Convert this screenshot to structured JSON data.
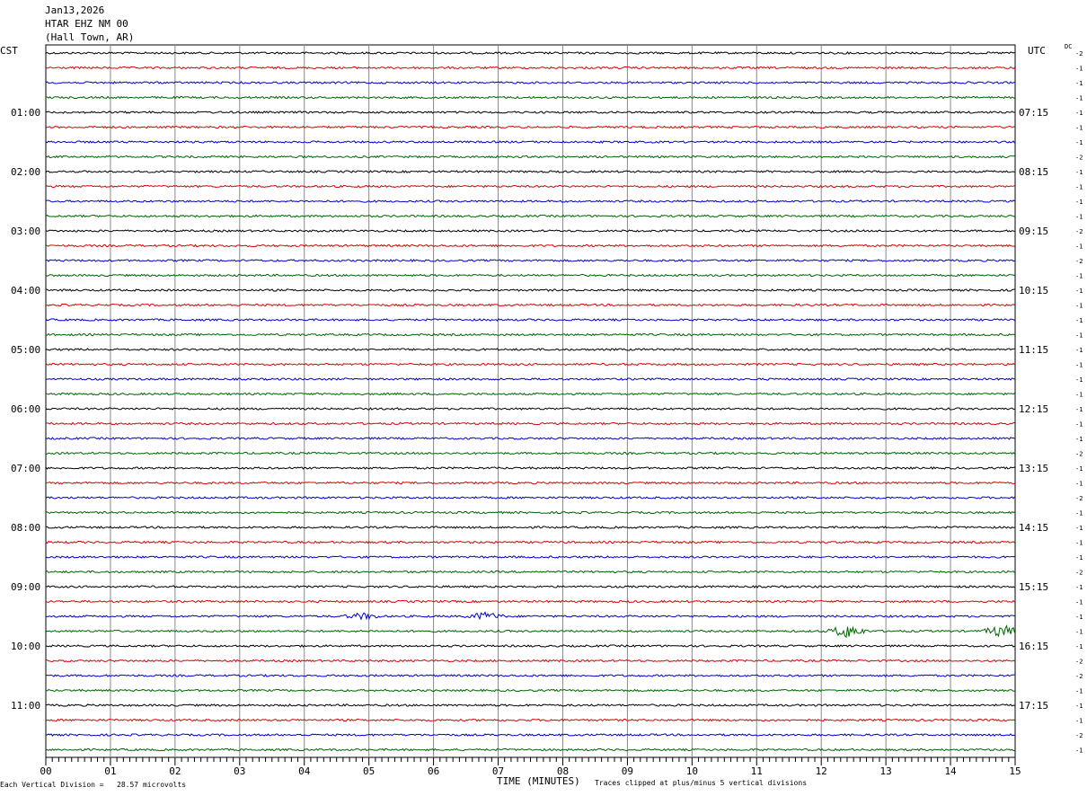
{
  "header": {
    "date": "Jan13,2026",
    "station": "HTAR EHZ NM 00",
    "location": "(Hall Town, AR)"
  },
  "left_zone": "CST",
  "right_zone": "UTC",
  "dc_label": "DC",
  "footer": {
    "scale_note": "Each Vertical Division =   28.57 microvolts",
    "xlabel": "TIME (MINUTES)",
    "clip_note": "Traces clipped at plus/minus 5 vertical divisions"
  },
  "chart_data": {
    "type": "line",
    "title": "HTAR EHZ NM 00",
    "xlabel": "TIME (MINUTES)",
    "xlim": [
      0,
      15
    ],
    "x_ticks": [
      "00",
      "01",
      "02",
      "03",
      "04",
      "05",
      "06",
      "07",
      "08",
      "09",
      "10",
      "11",
      "12",
      "13",
      "14",
      "15"
    ],
    "trace_count": 48,
    "trace_colors": [
      "#000000",
      "#dd0000",
      "#0000cc",
      "#006400"
    ],
    "left_hour_labels": [
      "01:00",
      "02:00",
      "03:00",
      "04:00",
      "05:00",
      "06:00",
      "07:00",
      "08:00",
      "09:00",
      "10:00",
      "11:00"
    ],
    "right_hour_labels": [
      "07:15",
      "08:15",
      "09:15",
      "10:15",
      "11:15",
      "12:15",
      "13:15",
      "14:15",
      "15:15",
      "16:15",
      "17:15"
    ],
    "dc_offsets": [
      "-2",
      "-1",
      "-1",
      "-1",
      "-1",
      "-1",
      "-1",
      "-2",
      "-1",
      "-1",
      "-1",
      "-1",
      "-2",
      "-1",
      "-2",
      "-1",
      "-1",
      "-1",
      "-1",
      "-1",
      "-1",
      "-1",
      "-1",
      "-1",
      "-1",
      "-1",
      "-1",
      "-2",
      "-1",
      "-1",
      "-2",
      "-1",
      "-1",
      "-1",
      "-1",
      "-2",
      "-1",
      "-1",
      "-1",
      "-1",
      "-1",
      "-2",
      "-2",
      "-1",
      "-1",
      "-1",
      "-2",
      "-1"
    ],
    "events": [
      {
        "trace": 38,
        "minute": 4.9,
        "amplitude": 3
      },
      {
        "trace": 38,
        "minute": 6.8,
        "amplitude": 4
      },
      {
        "trace": 39,
        "minute": 12.4,
        "amplitude": 7
      },
      {
        "trace": 39,
        "minute": 14.8,
        "amplitude": 6
      }
    ]
  }
}
